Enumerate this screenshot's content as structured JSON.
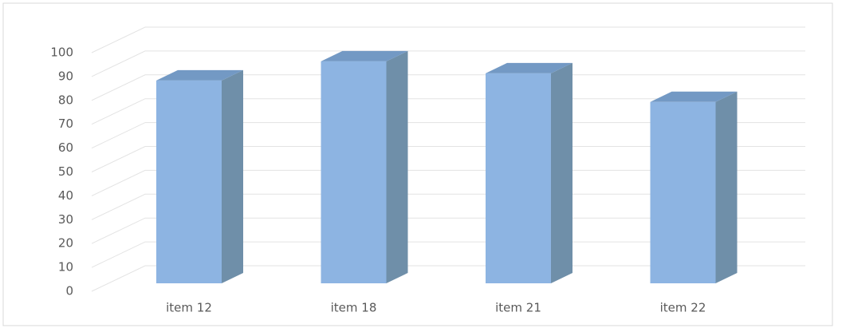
{
  "chart_data": {
    "type": "bar",
    "categories": [
      "item 12",
      "item 18",
      "item 21",
      "item 22"
    ],
    "values": [
      85,
      93,
      88,
      76
    ],
    "color": "#8db4e2",
    "ylim": [
      0,
      100
    ],
    "yticks": [
      0,
      10,
      20,
      30,
      40,
      50,
      60,
      70,
      80,
      90,
      100
    ],
    "grid": true
  }
}
